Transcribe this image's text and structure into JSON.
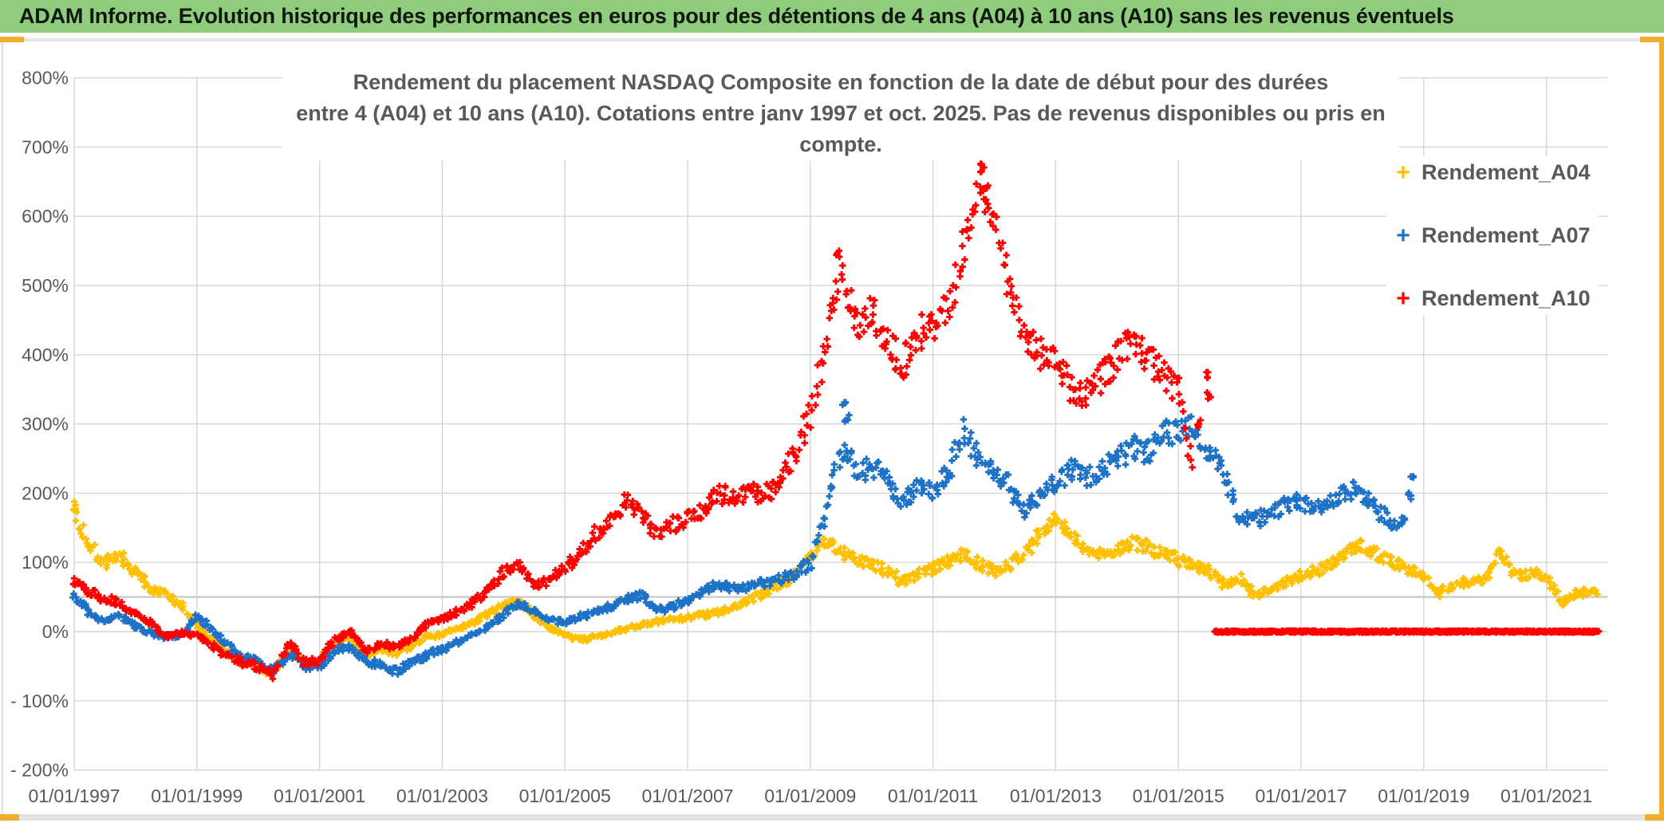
{
  "header": {
    "title": "ADAM Informe. Evolution historique des performances en euros pour des détentions de 4 ans (A04) à 10 ans (A10) sans les revenus éventuels",
    "bg_color": "#8FCC7E",
    "text_color": "#10180E"
  },
  "page": {
    "accent_yellow": "#EFAE2F",
    "strip_gray": "#E3E3E3",
    "grid_color": "#D6D6D6",
    "axis_text_color": "#595959"
  },
  "chart_data": {
    "type": "scatter",
    "marker": "plus",
    "title_line1": "Rendement du placement NASDAQ Composite en fonction de la date de début pour des durées",
    "title_line2": "entre 4 (A04) et 10 ans (A10). Cotations entre janv 1997 et oct. 2025. Pas de revenus disponibles ou pris en compte.",
    "legend_position": "top-right",
    "grid": true,
    "x_axis": {
      "start_year": 1997,
      "tick_year_offsets": [
        0,
        2,
        4,
        6,
        8,
        10,
        12,
        14,
        16,
        18,
        20,
        22,
        24
      ],
      "tick_labels": [
        "01/01/1997",
        "01/01/1999",
        "01/01/2001",
        "01/01/2003",
        "01/01/2005",
        "01/01/2007",
        "01/01/2009",
        "01/01/2011",
        "01/01/2013",
        "01/01/2015",
        "01/01/2017",
        "01/01/2019",
        "01/01/2021"
      ],
      "axis_end_offset_years": 25.0
    },
    "y_axis": {
      "unit": "%",
      "min": -200,
      "max": 800,
      "step": 100,
      "tick_labels": [
        "800%",
        "700%",
        "600%",
        "500%",
        "400%",
        "300%",
        "200%",
        "100%",
        "0%",
        "- 100%",
        "- 200%"
      ]
    },
    "reference_line_pct": 50,
    "series": [
      {
        "name": "Rendement_A04",
        "color": "#FFC000",
        "t_start": 0,
        "t_step": 0.25,
        "values": [
          175,
          125,
          100,
          112,
          85,
          62,
          55,
          38,
          8,
          -12,
          -30,
          -42,
          -52,
          -62,
          -25,
          -48,
          -45,
          -15,
          -8,
          -35,
          -25,
          -30,
          -20,
          -8,
          -4,
          4,
          14,
          25,
          38,
          45,
          22,
          5,
          -5,
          -12,
          -8,
          -2,
          4,
          10,
          14,
          18,
          20,
          24,
          28,
          35,
          45,
          55,
          68,
          85,
          108,
          132,
          115,
          102,
          98,
          88,
          72,
          82,
          92,
          102,
          112,
          98,
          88,
          95,
          115,
          140,
          162,
          135,
          118,
          112,
          118,
          128,
          122,
          112,
          104,
          96,
          88,
          66,
          76,
          52,
          62,
          72,
          80,
          88,
          95,
          118,
          125,
          112,
          100,
          88,
          82,
          55,
          68,
          72,
          76,
          118,
          82,
          84,
          80,
          42,
          55,
          58
        ],
        "extra_points": [
          [
            0.03,
            180
          ],
          [
            24.8,
            57
          ]
        ]
      },
      {
        "name": "Rendement_A07",
        "color": "#1D72C8",
        "t_start": 0,
        "t_step": 0.25,
        "values": [
          52,
          28,
          15,
          22,
          8,
          -2,
          -8,
          -4,
          22,
          2,
          -20,
          -35,
          -42,
          -58,
          -32,
          -50,
          -48,
          -28,
          -22,
          -42,
          -50,
          -58,
          -45,
          -35,
          -25,
          -15,
          -5,
          8,
          24,
          42,
          30,
          16,
          14,
          22,
          28,
          36,
          48,
          52,
          30,
          35,
          45,
          58,
          68,
          62,
          64,
          70,
          76,
          84,
          98,
          175,
          265,
          235,
          235,
          225,
          185,
          205,
          205,
          230,
          290,
          250,
          230,
          210,
          175,
          195,
          215,
          235,
          225,
          235,
          245,
          268,
          255,
          285,
          288,
          295,
          262,
          230,
          168,
          158,
          172,
          182,
          188,
          176,
          184,
          205,
          198,
          178,
          148,
          168
        ],
        "extra_points": [
          [
            12.55,
            330
          ],
          [
            12.6,
            308
          ],
          [
            21.78,
            195
          ],
          [
            21.8,
            220
          ]
        ]
      },
      {
        "name": "Rendement_A10",
        "color": "#FF0000",
        "t_start": 0,
        "t_step": 0.25,
        "values": [
          72,
          58,
          48,
          40,
          28,
          12,
          -8,
          -2,
          -5,
          -20,
          -35,
          -45,
          -50,
          -62,
          -15,
          -45,
          -42,
          -12,
          0,
          -28,
          -18,
          -22,
          -10,
          12,
          18,
          30,
          42,
          58,
          85,
          98,
          68,
          72,
          92,
          115,
          142,
          160,
          192,
          168,
          142,
          155,
          162,
          178,
          198,
          196,
          205,
          198,
          215,
          260,
          310,
          420,
          520,
          445,
          460,
          425,
          385,
          430,
          445,
          470,
          560,
          655,
          600,
          495,
          430,
          400,
          385,
          350,
          338,
          365,
          395,
          420,
          390,
          372,
          345,
          225
        ],
        "extra_points": [
          [
            12.45,
            545
          ],
          [
            14.8,
            675
          ],
          [
            14.85,
            640
          ],
          [
            18.35,
            300
          ],
          [
            18.45,
            370
          ],
          [
            18.5,
            340
          ]
        ],
        "zero_run": {
          "from": 18.6,
          "to": 24.85,
          "value": 0
        }
      }
    ]
  }
}
